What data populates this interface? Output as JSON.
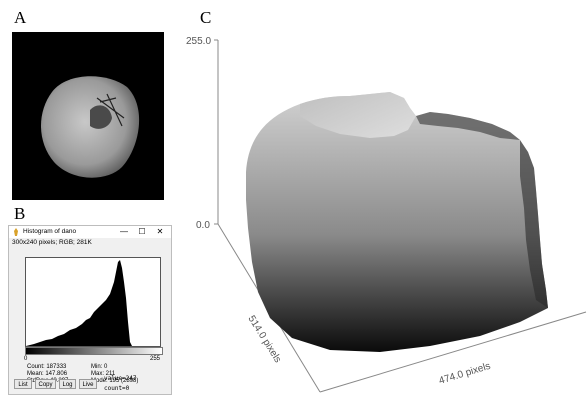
{
  "panels": {
    "a_letter": "A",
    "b_letter": "B",
    "c_letter": "C"
  },
  "histogram_window": {
    "title": "Histogram of dano",
    "image_info": "300x240 pixels; RGB; 281K",
    "controls": {
      "minimize": "—",
      "maximize": "☐",
      "close": "✕"
    },
    "axis_min": "0",
    "axis_max": "255",
    "stats": {
      "count": "Count: 187333",
      "mean": "Mean: 147.806",
      "stddev": "StdDev: 40.897",
      "min": "Min: 0",
      "max": "Max: 211",
      "mode": "Mode: 195 (2898)"
    },
    "buttons": {
      "list": "List",
      "copy": "Copy",
      "log": "Log",
      "live": "Live"
    },
    "readout": {
      "value": "value=247",
      "count": "count=0"
    }
  },
  "surface_plot": {
    "z_max": "255.0",
    "z_min": "0.0",
    "x_label": "474.0 pixels",
    "y_label": "514.0 pixels"
  },
  "colors": {
    "plot_axis": "#888888",
    "window_bg": "#f0f0f0",
    "histogram_fill": "#000000"
  },
  "icons": {
    "app": "imagej-icon"
  }
}
